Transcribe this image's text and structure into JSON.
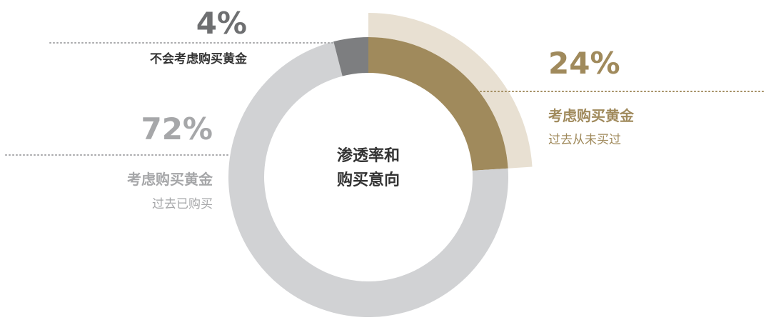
{
  "chart_data": {
    "type": "pie",
    "title": "渗透率和购买意向",
    "center_label": [
      "渗透率和",
      "购买意向"
    ],
    "slices": [
      {
        "label": "考虑购买黄金",
        "sublabel": "过去从未买过",
        "value": 24,
        "value_text": "24%",
        "color": "#a08a5c",
        "highlight_color": "#e8e0d2"
      },
      {
        "label": "考虑购买黄金",
        "sublabel": "过去已购买",
        "value": 72,
        "value_text": "72%",
        "color": "#d1d2d4"
      },
      {
        "label": "不会考虑购买黄金",
        "sublabel": "",
        "value": 4,
        "value_text": "4%",
        "color": "#7d7e80"
      }
    ]
  },
  "colors": {
    "gold": "#a08a5c",
    "gray_text": "#9a9a9a",
    "dark_gray": "#6e6f71",
    "leader": "#a08a5c",
    "leader_gray": "#a6a7a9"
  }
}
